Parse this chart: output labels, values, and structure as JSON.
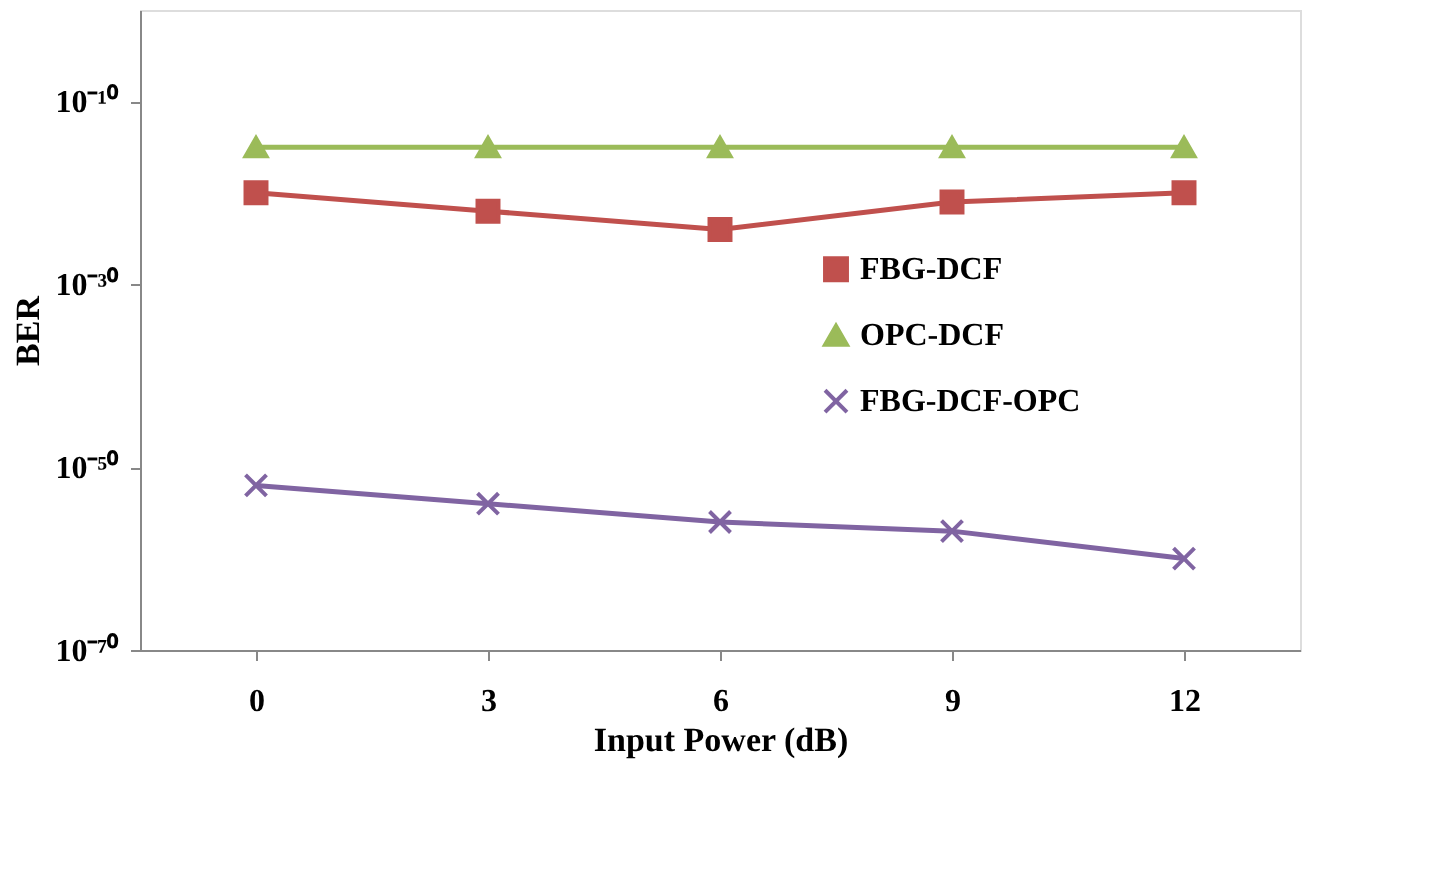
{
  "chart_data": {
    "type": "line",
    "xlabel": "Input Power (dB)",
    "ylabel": "BER",
    "categories": [
      "0",
      "3",
      "6",
      "9",
      "12"
    ],
    "series": [
      {
        "name": "FBG-DCF",
        "color": "#c0504d",
        "marker": "square",
        "values": [
          1e-20,
          1e-22,
          1e-24,
          1e-21,
          1e-20
        ]
      },
      {
        "name": "OPC-DCF",
        "color": "#9bbb59",
        "marker": "triangle",
        "values": [
          1e-15,
          1e-15,
          1e-15,
          1e-15,
          1e-15
        ]
      },
      {
        "name": "FBG-DCF-OPC",
        "color": "#8064a2",
        "marker": "cross",
        "values": [
          1e-52,
          1e-54,
          1e-56,
          1e-57,
          1e-60
        ]
      }
    ],
    "log": "y",
    "ylim": [
      1e-70,
      1
    ],
    "yticks": [
      {
        "value": 1e-10,
        "label": "10⁻¹⁰"
      },
      {
        "value": 1e-30,
        "label": "10⁻³⁰"
      },
      {
        "value": 1e-50,
        "label": "10⁻⁵⁰"
      },
      {
        "value": 1e-70,
        "label": "10⁻⁷⁰"
      }
    ],
    "grid": false,
    "legend": "right",
    "line_style": "solid"
  }
}
